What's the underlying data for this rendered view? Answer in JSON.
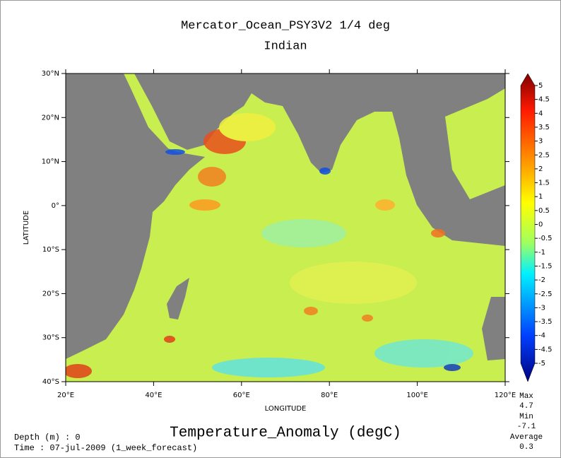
{
  "map": {
    "title": "Mercator_Ocean_PSY3V2 1/4 deg",
    "subtitle": "Indian",
    "xlabel": "LONGITUDE",
    "ylabel": "LATITUDE",
    "variable": "Temperature_Anomaly (degC)",
    "depth": "Depth (m) : 0",
    "time": "Time : 07-jul-2009 (1_week_forecast)",
    "xlim": [
      20,
      120
    ],
    "ylim": [
      -40,
      30
    ],
    "xticks": [
      {
        "value": 20,
        "label": "20°E"
      },
      {
        "value": 40,
        "label": "40°E"
      },
      {
        "value": 60,
        "label": "60°E"
      },
      {
        "value": 80,
        "label": "80°E"
      },
      {
        "value": 100,
        "label": "100°E"
      },
      {
        "value": 120,
        "label": "120°E"
      }
    ],
    "yticks": [
      {
        "value": 30,
        "label": "30°N"
      },
      {
        "value": 20,
        "label": "20°N"
      },
      {
        "value": 10,
        "label": "10°N"
      },
      {
        "value": 0,
        "label": "0°"
      },
      {
        "value": -10,
        "label": "10°S"
      },
      {
        "value": -20,
        "label": "20°S"
      },
      {
        "value": -30,
        "label": "30°S"
      },
      {
        "value": -40,
        "label": "40°S"
      }
    ],
    "colorbar": {
      "lim": [
        -5,
        5
      ],
      "ticks": [
        5,
        4.5,
        4,
        3.5,
        3,
        2.5,
        2,
        1.5,
        1,
        0.5,
        0,
        -0.5,
        -1,
        -1.5,
        -2,
        -2.5,
        -3,
        -3.5,
        -4,
        -4.5,
        -5
      ]
    },
    "stats": [
      {
        "label": "Max",
        "value": 4.7
      },
      {
        "label": "Min",
        "value": -7.1
      },
      {
        "label": "Average",
        "value": 0.3
      }
    ]
  }
}
